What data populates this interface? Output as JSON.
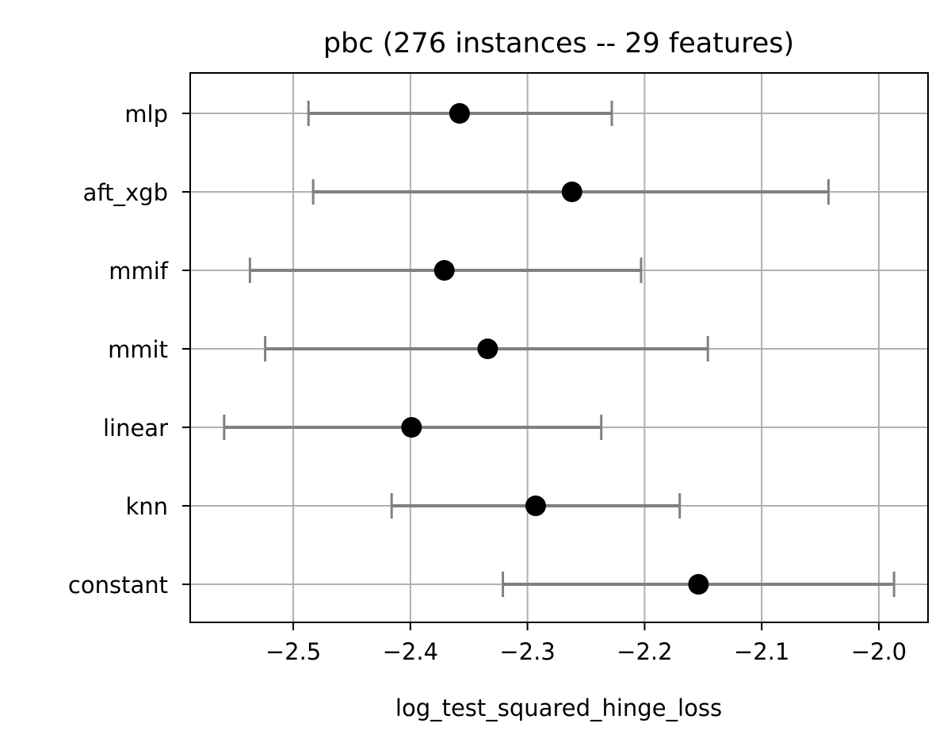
{
  "chart_data": {
    "type": "scatter",
    "title": "pbc (276 instances -- 29 features)",
    "xlabel": "log_test_squared_hinge_loss",
    "ylabel": "",
    "xlim": [
      -2.588,
      -1.958
    ],
    "xticks": [
      -2.5,
      -2.4,
      -2.3,
      -2.2,
      -2.1,
      -2.0
    ],
    "xtick_labels": [
      "−2.5",
      "−2.4",
      "−2.3",
      "−2.2",
      "−2.1",
      "−2.0"
    ],
    "categories": [
      "mlp",
      "aft_xgb",
      "mmif",
      "mmit",
      "linear",
      "knn",
      "constant"
    ],
    "series": [
      {
        "mean": [
          -2.358,
          -2.262,
          -2.371,
          -2.334,
          -2.399,
          -2.293,
          -2.154
        ],
        "lower": [
          -2.487,
          -2.483,
          -2.537,
          -2.524,
          -2.559,
          -2.416,
          -2.321
        ],
        "upper": [
          -2.228,
          -2.043,
          -2.203,
          -2.146,
          -2.237,
          -2.17,
          -1.987
        ]
      }
    ],
    "grid": true,
    "colors": {
      "points": "#000000",
      "errorbars": "#808080",
      "grid": "#b0b0b0",
      "axes": "#000000"
    }
  }
}
